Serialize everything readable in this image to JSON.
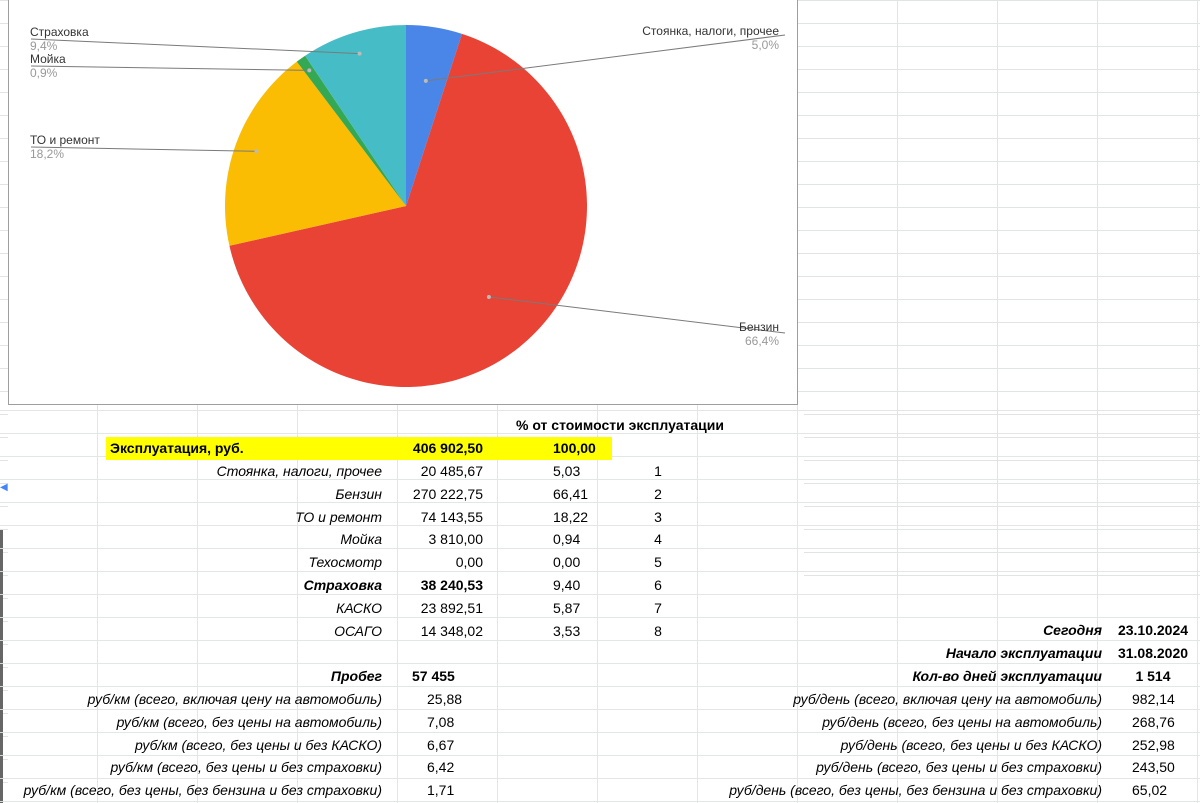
{
  "chart_data": {
    "type": "pie",
    "slices": [
      {
        "label": "Стоянка, налоги, прочее",
        "value": 5.0,
        "percent_label": "5,0%",
        "color": "#4a86e8"
      },
      {
        "label": "Бензин",
        "value": 66.4,
        "percent_label": "66,4%",
        "color": "#e94335"
      },
      {
        "label": "ТО и ремонт",
        "value": 18.2,
        "percent_label": "18,2%",
        "color": "#fbbc04"
      },
      {
        "label": "Мойка",
        "value": 0.9,
        "percent_label": "0,9%",
        "color": "#34a853"
      },
      {
        "label": "Страховка",
        "value": 9.4,
        "percent_label": "9,4%",
        "color": "#46bdc6"
      }
    ]
  },
  "table": {
    "pct_header": "% от стоимости эксплуатации",
    "total": {
      "label": "Эксплуатация, руб.",
      "value": "406 902,50",
      "pct": "100,00"
    },
    "rows": [
      {
        "label": "Стоянка, налоги, прочее",
        "value": "20 485,67",
        "pct": "5,03",
        "n": "1"
      },
      {
        "label": "Бензин",
        "value": "270 222,75",
        "pct": "66,41",
        "n": "2"
      },
      {
        "label": "ТО и ремонт",
        "value": "74 143,55",
        "pct": "18,22",
        "n": "3"
      },
      {
        "label": "Мойка",
        "value": "3 810,00",
        "pct": "0,94",
        "n": "4"
      },
      {
        "label": "Техосмотр",
        "value": "0,00",
        "pct": "0,00",
        "n": "5"
      },
      {
        "label": "Страховка",
        "value": "38 240,53",
        "pct": "9,40",
        "n": "6"
      },
      {
        "label": "КАСКО",
        "value": "23 892,51",
        "pct": "5,87",
        "n": "7"
      },
      {
        "label": "ОСАГО",
        "value": "14 348,02",
        "pct": "3,53",
        "n": "8"
      }
    ],
    "mileage": {
      "label": "Пробег",
      "value": "57 455"
    },
    "per_km": [
      {
        "label": "руб/км (всего, включая цену на автомобиль)",
        "value": "25,88"
      },
      {
        "label": "руб/км (всего, без цены на автомобиль)",
        "value": "7,08"
      },
      {
        "label": "руб/км (всего, без цены и без КАСКО)",
        "value": "6,67"
      },
      {
        "label": "руб/км (всего, без цены и без страховки)",
        "value": "6,42"
      },
      {
        "label": "руб/км (всего, без цены, без бензина и без страховки)",
        "value": "1,71"
      }
    ],
    "today": {
      "label": "Сегодня",
      "value": "23.10.2024"
    },
    "start": {
      "label": "Начало эксплуатации",
      "value": "31.08.2020"
    },
    "days": {
      "label": "Кол-во дней эксплуатации",
      "value": "1 514"
    },
    "per_day": [
      {
        "label": "руб/день (всего, включая цену на автомобиль)",
        "value": "982,14"
      },
      {
        "label": "руб/день (всего, без цены на автомобиль)",
        "value": "268,76"
      },
      {
        "label": "руб/день (всего, без цены и без КАСКО)",
        "value": "252,98"
      },
      {
        "label": "руб/день (всего, без цены и без страховки)",
        "value": "243,50"
      },
      {
        "label": "руб/день (всего, без цены, без бензина и без страховки)",
        "value": "65,02"
      }
    ]
  }
}
